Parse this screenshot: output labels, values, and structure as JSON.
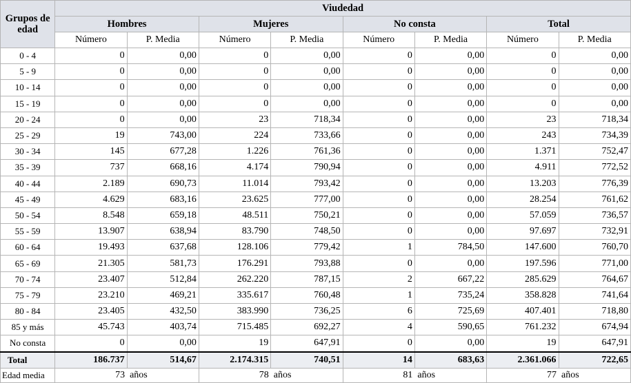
{
  "header": {
    "group_label": "Grupos de edad",
    "main_title": "Viudedad",
    "sections": [
      "Hombres",
      "Mujeres",
      "No consta",
      "Total"
    ],
    "numero_label": "Número",
    "pmedia_label": "P. Media"
  },
  "rows": [
    {
      "label": "0 - 4",
      "v": [
        "0",
        "0,00",
        "0",
        "0,00",
        "0",
        "0,00",
        "0",
        "0,00"
      ]
    },
    {
      "label": "5 - 9",
      "v": [
        "0",
        "0,00",
        "0",
        "0,00",
        "0",
        "0,00",
        "0",
        "0,00"
      ]
    },
    {
      "label": "10 - 14",
      "v": [
        "0",
        "0,00",
        "0",
        "0,00",
        "0",
        "0,00",
        "0",
        "0,00"
      ]
    },
    {
      "label": "15 - 19",
      "v": [
        "0",
        "0,00",
        "0",
        "0,00",
        "0",
        "0,00",
        "0",
        "0,00"
      ]
    },
    {
      "label": "20 - 24",
      "v": [
        "0",
        "0,00",
        "23",
        "718,34",
        "0",
        "0,00",
        "23",
        "718,34"
      ]
    },
    {
      "label": "25 - 29",
      "v": [
        "19",
        "743,00",
        "224",
        "733,66",
        "0",
        "0,00",
        "243",
        "734,39"
      ]
    },
    {
      "label": "30 - 34",
      "v": [
        "145",
        "677,28",
        "1.226",
        "761,36",
        "0",
        "0,00",
        "1.371",
        "752,47"
      ]
    },
    {
      "label": "35 - 39",
      "v": [
        "737",
        "668,16",
        "4.174",
        "790,94",
        "0",
        "0,00",
        "4.911",
        "772,52"
      ]
    },
    {
      "label": "40 - 44",
      "v": [
        "2.189",
        "690,73",
        "11.014",
        "793,42",
        "0",
        "0,00",
        "13.203",
        "776,39"
      ]
    },
    {
      "label": "45 - 49",
      "v": [
        "4.629",
        "683,16",
        "23.625",
        "777,00",
        "0",
        "0,00",
        "28.254",
        "761,62"
      ]
    },
    {
      "label": "50 - 54",
      "v": [
        "8.548",
        "659,18",
        "48.511",
        "750,21",
        "0",
        "0,00",
        "57.059",
        "736,57"
      ]
    },
    {
      "label": "55 - 59",
      "v": [
        "13.907",
        "638,94",
        "83.790",
        "748,50",
        "0",
        "0,00",
        "97.697",
        "732,91"
      ]
    },
    {
      "label": "60 - 64",
      "v": [
        "19.493",
        "637,68",
        "128.106",
        "779,42",
        "1",
        "784,50",
        "147.600",
        "760,70"
      ]
    },
    {
      "label": "65 - 69",
      "v": [
        "21.305",
        "581,73",
        "176.291",
        "793,88",
        "0",
        "0,00",
        "197.596",
        "771,00"
      ]
    },
    {
      "label": "70 - 74",
      "v": [
        "23.407",
        "512,84",
        "262.220",
        "787,15",
        "2",
        "667,22",
        "285.629",
        "764,67"
      ]
    },
    {
      "label": "75 - 79",
      "v": [
        "23.210",
        "469,21",
        "335.617",
        "760,48",
        "1",
        "735,24",
        "358.828",
        "741,64"
      ]
    },
    {
      "label": "80 - 84",
      "v": [
        "23.405",
        "432,50",
        "383.990",
        "736,25",
        "6",
        "725,69",
        "407.401",
        "718,80"
      ]
    },
    {
      "label": "85 y más",
      "v": [
        "45.743",
        "403,74",
        "715.485",
        "692,27",
        "4",
        "590,65",
        "761.232",
        "674,94"
      ]
    },
    {
      "label": "No consta",
      "v": [
        "0",
        "0,00",
        "19",
        "647,91",
        "0",
        "0,00",
        "19",
        "647,91"
      ]
    }
  ],
  "total": {
    "label": "Total",
    "v": [
      "186.737",
      "514,67",
      "2.174.315",
      "740,51",
      "14",
      "683,63",
      "2.361.066",
      "722,65"
    ]
  },
  "media": {
    "label": "Edad media",
    "v": [
      "73",
      "78",
      "81",
      "77"
    ],
    "unit": "años"
  }
}
